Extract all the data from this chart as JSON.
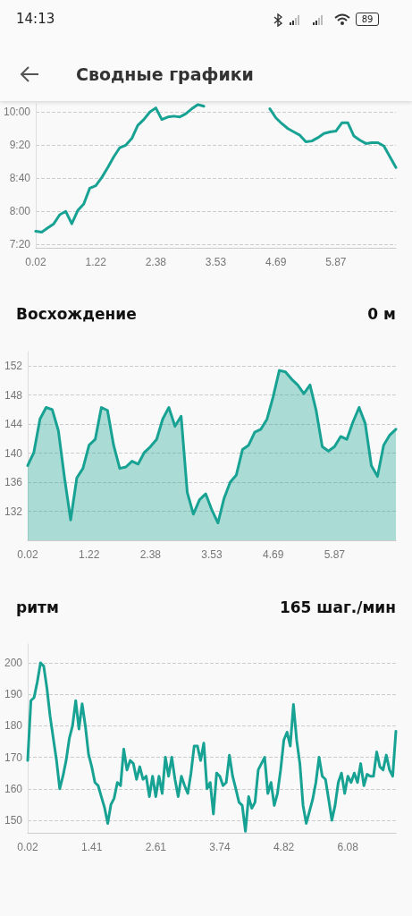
{
  "chart_data": [
    {
      "type": "other",
      "title": "Сводные графики",
      "annotations": [
        "14:13",
        "89"
      ]
    },
    {
      "type": "line",
      "color": "#17a293",
      "grid": "y",
      "ylim": [
        436,
        610
      ],
      "yticks": [
        {
          "value": 440,
          "label": "7:20"
        },
        {
          "value": 480,
          "label": "8:00"
        },
        {
          "value": 520,
          "label": "8:40"
        },
        {
          "value": 560,
          "label": "9:20"
        },
        {
          "value": 600,
          "label": "10:00"
        }
      ],
      "categories": [
        "0.02",
        null,
        null,
        null,
        null,
        null,
        null,
        null,
        null,
        null,
        "1.22",
        null,
        null,
        null,
        null,
        null,
        null,
        null,
        null,
        null,
        "2.38",
        null,
        null,
        null,
        null,
        null,
        null,
        null,
        null,
        null,
        "3.53",
        null,
        null,
        null,
        null,
        null,
        null,
        null,
        null,
        null,
        "4.69",
        null,
        null,
        null,
        null,
        null,
        null,
        null,
        null,
        null,
        "5.87",
        null,
        null,
        null,
        null,
        null,
        null,
        null,
        null,
        null,
        null
      ],
      "values": [
        456,
        455,
        460,
        465,
        476,
        480,
        465,
        481,
        489,
        508,
        511,
        521,
        533,
        546,
        557,
        560,
        568,
        584,
        591,
        600,
        605,
        591,
        594,
        595,
        594,
        598,
        604,
        609,
        607,
        null,
        null,
        null,
        null,
        null,
        null,
        null,
        null,
        null,
        null,
        604,
        593,
        586,
        580,
        576,
        572,
        564,
        565,
        569,
        574,
        576,
        577,
        587,
        587,
        571,
        566,
        562,
        563,
        563,
        559,
        546,
        533
      ]
    },
    {
      "type": "area",
      "title": "Восхождение",
      "subtitle": "0 м",
      "color": "#17a293",
      "grid": "y",
      "ylim": [
        128,
        154
      ],
      "yticks": [
        132,
        136,
        140,
        144,
        148,
        152
      ],
      "categories": [
        "0.02",
        null,
        null,
        null,
        null,
        null,
        null,
        null,
        null,
        null,
        "1.22",
        null,
        null,
        null,
        null,
        null,
        null,
        null,
        null,
        null,
        "2.38",
        null,
        null,
        null,
        null,
        null,
        null,
        null,
        null,
        null,
        "3.53",
        null,
        null,
        null,
        null,
        null,
        null,
        null,
        null,
        null,
        "4.69",
        null,
        null,
        null,
        null,
        null,
        null,
        null,
        null,
        null,
        "5.87",
        null,
        null,
        null,
        null,
        null,
        null,
        null,
        null,
        null,
        null
      ],
      "values": [
        138.3,
        140.1,
        144.7,
        146.3,
        146.0,
        143.1,
        136.6,
        130.8,
        136.6,
        137.9,
        141.1,
        141.9,
        146.3,
        145.9,
        141.1,
        137.9,
        138.1,
        138.9,
        138.5,
        140.1,
        140.9,
        141.9,
        144.7,
        146.3,
        143.7,
        145.1,
        134.6,
        131.6,
        133.6,
        134.4,
        132.2,
        130.4,
        133.8,
        136.0,
        137.0,
        140.5,
        141.1,
        142.9,
        143.3,
        144.7,
        147.8,
        151.4,
        151.2,
        150.2,
        149.4,
        148.2,
        149.4,
        145.9,
        140.9,
        140.3,
        140.9,
        142.3,
        141.9,
        144.3,
        146.3,
        144.1,
        138.3,
        136.8,
        141.1,
        142.5,
        143.3
      ]
    },
    {
      "type": "line",
      "title": "ритм",
      "subtitle": "165 шаг./мин",
      "color": "#17a293",
      "grid": "y",
      "ylim": [
        146,
        206
      ],
      "yticks": [
        150,
        160,
        170,
        180,
        190,
        200
      ],
      "categories": [
        "0.02",
        null,
        null,
        null,
        null,
        null,
        null,
        null,
        null,
        null,
        null,
        null,
        null,
        null,
        null,
        null,
        null,
        null,
        null,
        null,
        "1.41",
        null,
        null,
        null,
        null,
        null,
        null,
        null,
        null,
        null,
        null,
        null,
        null,
        null,
        null,
        null,
        null,
        null,
        null,
        null,
        "2.61",
        null,
        null,
        null,
        null,
        null,
        null,
        null,
        null,
        null,
        null,
        null,
        null,
        null,
        null,
        null,
        null,
        null,
        null,
        null,
        "3.74",
        null,
        null,
        null,
        null,
        null,
        null,
        null,
        null,
        null,
        null,
        null,
        null,
        null,
        null,
        null,
        null,
        null,
        null,
        null,
        "4.82",
        null,
        null,
        null,
        null,
        null,
        null,
        null,
        null,
        null,
        null,
        null,
        null,
        null,
        null,
        null,
        null,
        null,
        null,
        null,
        "6.08",
        null,
        null,
        null,
        null,
        null,
        null,
        null,
        null,
        null,
        null,
        null,
        null,
        null,
        null,
        null
      ],
      "values": [
        169,
        188,
        189,
        194,
        200,
        199,
        192,
        183,
        176,
        169,
        160,
        164,
        169,
        176,
        180,
        188,
        179,
        187,
        180,
        171,
        167,
        162,
        161,
        157.5,
        154,
        149,
        155,
        157,
        162,
        161,
        172.6,
        166,
        169,
        168,
        163,
        167,
        163,
        164,
        157.5,
        164,
        157.5,
        164,
        158.5,
        170,
        164,
        170,
        163,
        157.5,
        164,
        161,
        158.5,
        165,
        173.6,
        173.6,
        169,
        174.5,
        160,
        162,
        152,
        165,
        164,
        161,
        162,
        170.7,
        164,
        160,
        155.7,
        154.7,
        146.5,
        157.5,
        153.8,
        155.7,
        166,
        168,
        170,
        158.5,
        162,
        154.7,
        158.5,
        166,
        175.5,
        178,
        173.6,
        186.8,
        175.5,
        168,
        154.7,
        149,
        152.8,
        156.6,
        162,
        170,
        164,
        163,
        156.6,
        150,
        154.7,
        162,
        165,
        158.5,
        164,
        162,
        165,
        162,
        168,
        161,
        164.6,
        164,
        164,
        171.7,
        167,
        166,
        170.7,
        166,
        164,
        178.3
      ]
    }
  ]
}
